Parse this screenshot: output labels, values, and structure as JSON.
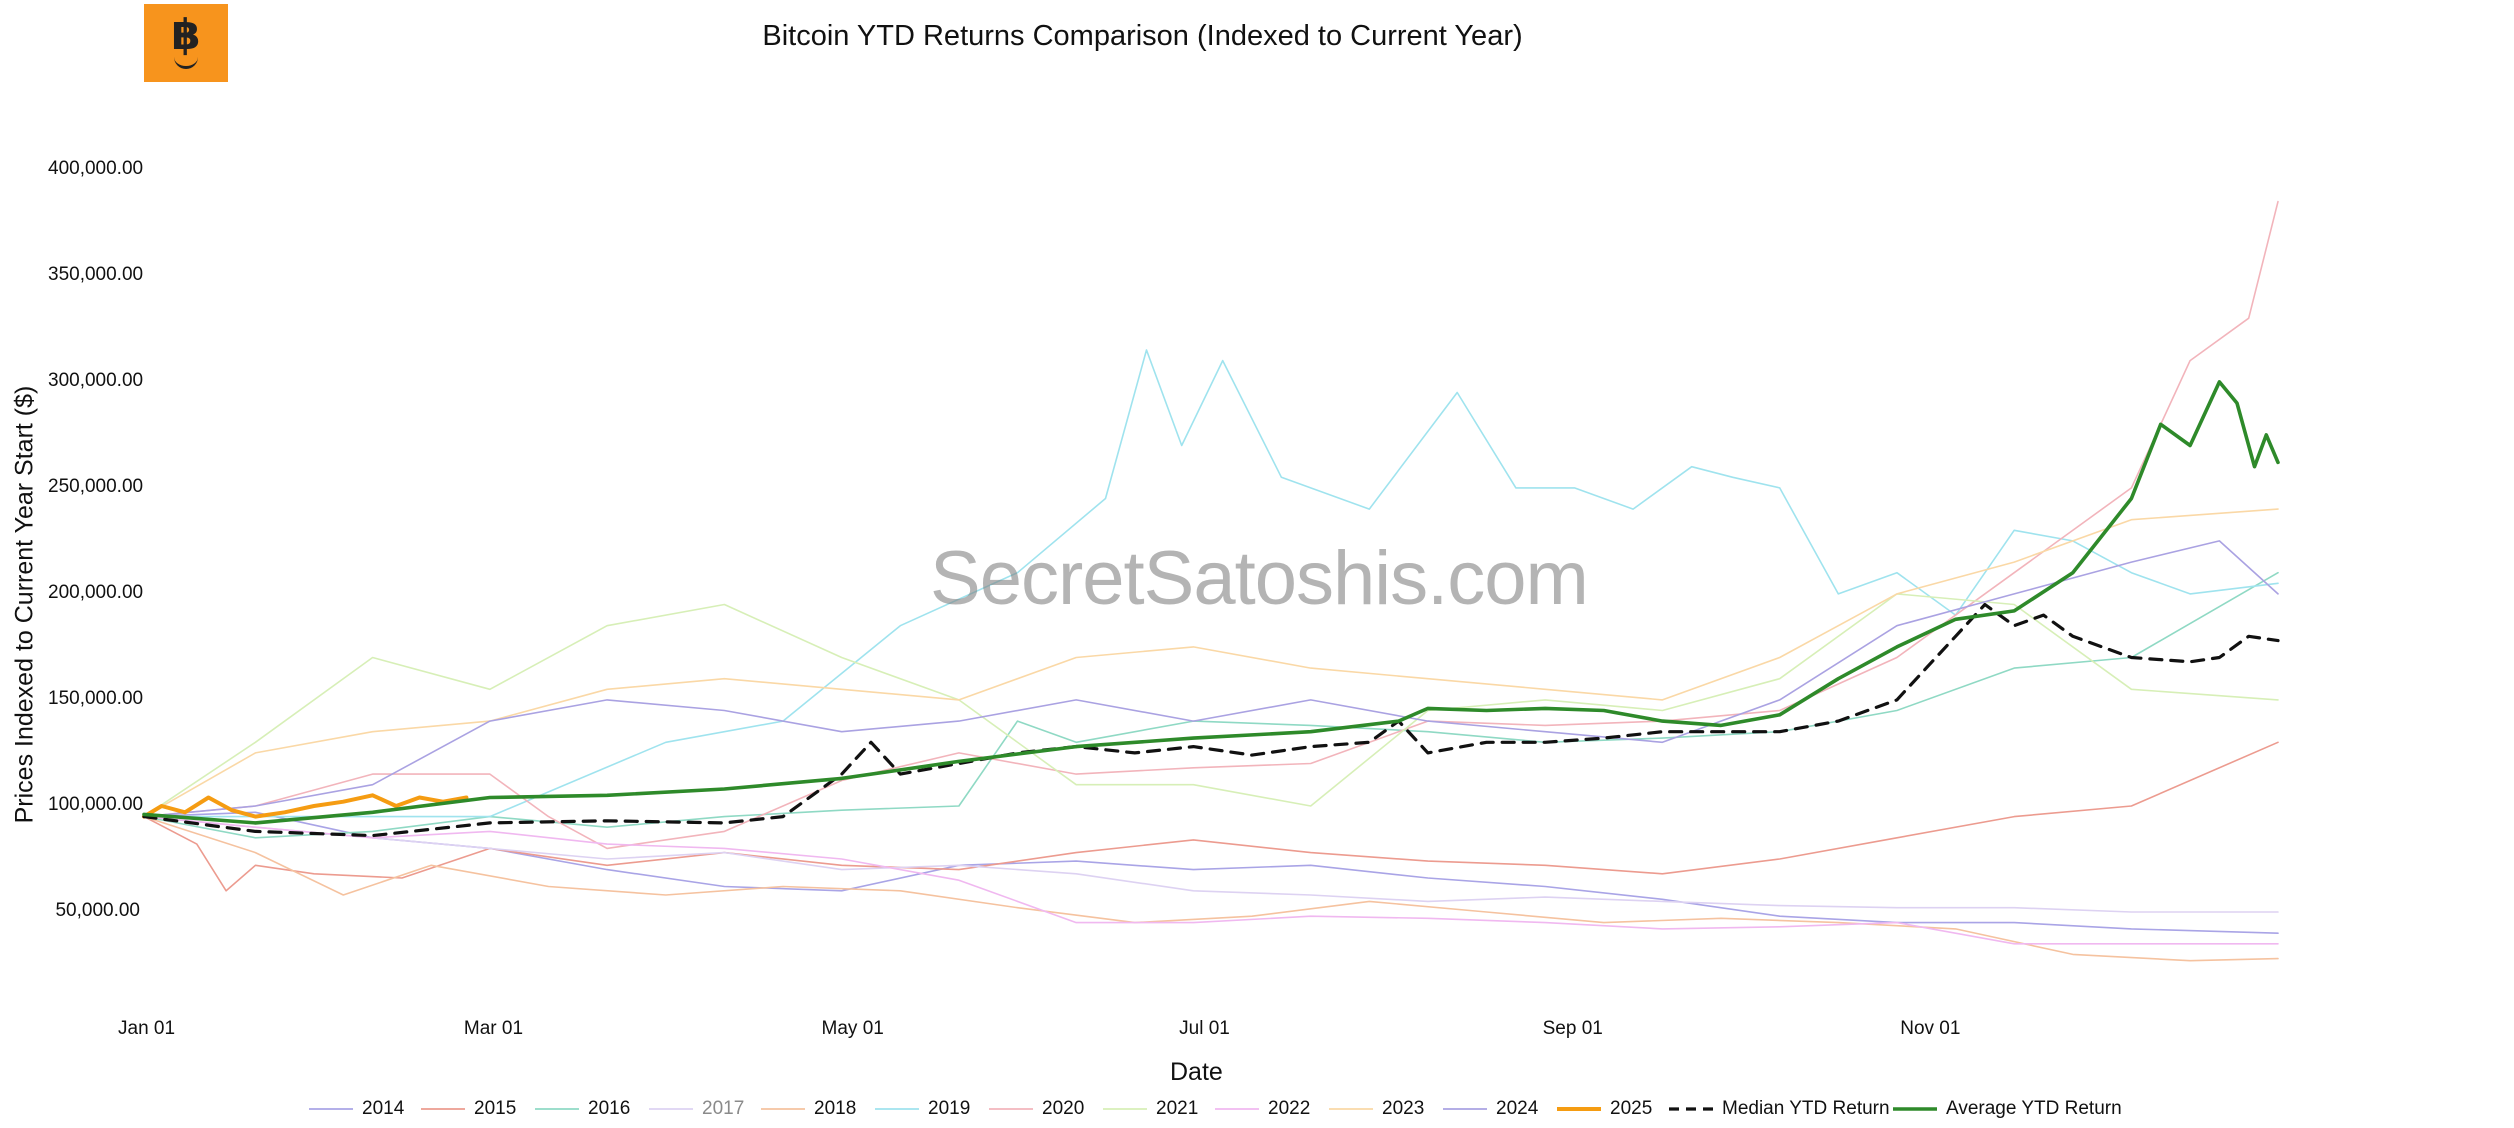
{
  "logo": {
    "glyph": "฿"
  },
  "watermark": "SecretSatoshis.com",
  "chart_data": {
    "type": "line",
    "title": "Bitcoin YTD Returns Comparison (Indexed to Current Year)",
    "xlabel": "Date",
    "ylabel": "Prices Indexed to Current Year Start ($)",
    "ylim": [
      0,
      420000
    ],
    "xlim": [
      1,
      365
    ],
    "x_unit": "day of year",
    "y_ticks": [
      "50,000.00",
      "100,000.00",
      "150,000.00",
      "200,000.00",
      "250,000.00",
      "300,000.00",
      "350,000.00",
      "400,000.00"
    ],
    "y_tick_values": [
      50000,
      100000,
      150000,
      200000,
      250000,
      300000,
      350000,
      400000
    ],
    "x_ticks": [
      "Jan 01",
      "Mar 01",
      "May 01",
      "Jul 01",
      "Sep 01",
      "Nov 01"
    ],
    "x_tick_days": [
      1,
      60,
      121,
      182,
      244,
      305
    ],
    "grid": false,
    "legend_position": "bottom",
    "series": [
      {
        "name": "2014",
        "color": "#a9a4e6",
        "width": 1.6,
        "dash": false,
        "x": [
          1,
          20,
          40,
          60,
          80,
          100,
          120,
          140,
          160,
          180,
          200,
          220,
          240,
          260,
          280,
          300,
          320,
          340,
          365
        ],
        "y": [
          95000,
          97000,
          85000,
          80000,
          70000,
          62000,
          60000,
          72000,
          74000,
          70000,
          72000,
          66000,
          62000,
          56000,
          48000,
          45000,
          45000,
          42000,
          40000
        ]
      },
      {
        "name": "2015",
        "color": "#ec9b8f",
        "width": 1.6,
        "dash": false,
        "x": [
          1,
          10,
          15,
          20,
          30,
          45,
          60,
          80,
          100,
          120,
          140,
          160,
          180,
          200,
          220,
          240,
          260,
          280,
          300,
          320,
          340,
          365
        ],
        "y": [
          95000,
          82000,
          60000,
          72000,
          68000,
          66000,
          80000,
          72000,
          78000,
          72000,
          70000,
          78000,
          84000,
          78000,
          74000,
          72000,
          68000,
          75000,
          85000,
          95000,
          100000,
          130000
        ]
      },
      {
        "name": "2016",
        "color": "#8fd9c4",
        "width": 1.6,
        "dash": false,
        "x": [
          1,
          20,
          40,
          60,
          80,
          100,
          120,
          140,
          150,
          160,
          180,
          200,
          220,
          240,
          260,
          280,
          300,
          320,
          340,
          365
        ],
        "y": [
          95000,
          85000,
          88000,
          95000,
          90000,
          95000,
          98000,
          100000,
          140000,
          130000,
          140000,
          138000,
          135000,
          130000,
          132000,
          135000,
          145000,
          165000,
          170000,
          210000
        ]
      },
      {
        "name": "2017",
        "color": "#ddd2f2",
        "width": 1.6,
        "dash": false,
        "x": [
          1,
          20,
          40,
          60,
          80,
          100,
          120,
          140,
          160,
          180,
          200,
          220,
          240,
          260,
          280,
          300,
          320,
          340,
          365
        ],
        "y": [
          95000,
          90000,
          85000,
          80000,
          75000,
          78000,
          70000,
          72000,
          68000,
          60000,
          58000,
          55000,
          57000,
          55000,
          53000,
          52000,
          52000,
          50000,
          50000
        ]
      },
      {
        "name": "2018",
        "color": "#f5c29f",
        "width": 1.6,
        "dash": false,
        "x": [
          1,
          20,
          35,
          50,
          70,
          90,
          110,
          130,
          150,
          170,
          190,
          210,
          230,
          250,
          270,
          290,
          310,
          330,
          350,
          365
        ],
        "y": [
          95000,
          78000,
          58000,
          72000,
          62000,
          58000,
          62000,
          60000,
          52000,
          45000,
          48000,
          55000,
          50000,
          45000,
          47000,
          45000,
          42000,
          30000,
          27000,
          28000
        ]
      },
      {
        "name": "2019",
        "color": "#9fe3ee",
        "width": 1.6,
        "dash": false,
        "x": [
          1,
          30,
          60,
          90,
          110,
          130,
          150,
          165,
          172,
          178,
          185,
          195,
          210,
          225,
          235,
          245,
          255,
          265,
          272,
          280,
          290,
          300,
          310,
          320,
          330,
          340,
          350,
          365
        ],
        "y": [
          95000,
          95000,
          95000,
          130000,
          140000,
          185000,
          210000,
          245000,
          315000,
          270000,
          310000,
          255000,
          240000,
          295000,
          250000,
          250000,
          240000,
          260000,
          255000,
          250000,
          200000,
          210000,
          190000,
          230000,
          225000,
          210000,
          200000,
          205000
        ]
      },
      {
        "name": "2020",
        "color": "#f2b4bb",
        "width": 1.6,
        "dash": false,
        "x": [
          1,
          20,
          40,
          60,
          70,
          80,
          100,
          120,
          140,
          160,
          180,
          200,
          220,
          240,
          260,
          280,
          300,
          320,
          340,
          350,
          360,
          365
        ],
        "y": [
          95000,
          100000,
          115000,
          115000,
          95000,
          80000,
          88000,
          112000,
          125000,
          115000,
          118000,
          120000,
          140000,
          138000,
          140000,
          145000,
          170000,
          210000,
          250000,
          310000,
          330000,
          385000
        ]
      },
      {
        "name": "2021",
        "color": "#d7efb7",
        "width": 1.6,
        "dash": false,
        "x": [
          1,
          20,
          40,
          60,
          80,
          100,
          120,
          140,
          160,
          180,
          200,
          220,
          240,
          260,
          280,
          300,
          320,
          340,
          365
        ],
        "y": [
          95000,
          130000,
          170000,
          155000,
          185000,
          195000,
          170000,
          150000,
          110000,
          110000,
          100000,
          145000,
          150000,
          145000,
          160000,
          200000,
          195000,
          155000,
          150000
        ]
      },
      {
        "name": "2022",
        "color": "#f0b8f0",
        "width": 1.6,
        "dash": false,
        "x": [
          1,
          20,
          40,
          60,
          80,
          100,
          120,
          140,
          160,
          180,
          200,
          220,
          240,
          260,
          280,
          300,
          320,
          340,
          365
        ],
        "y": [
          95000,
          90000,
          85000,
          88000,
          82000,
          80000,
          75000,
          65000,
          45000,
          45000,
          48000,
          47000,
          45000,
          42000,
          43000,
          45000,
          35000,
          35000,
          35000
        ]
      },
      {
        "name": "2023",
        "color": "#fad8a6",
        "width": 1.6,
        "dash": false,
        "x": [
          1,
          20,
          40,
          60,
          80,
          100,
          120,
          140,
          160,
          180,
          200,
          220,
          240,
          260,
          280,
          300,
          320,
          340,
          365
        ],
        "y": [
          95000,
          125000,
          135000,
          140000,
          155000,
          160000,
          155000,
          150000,
          170000,
          175000,
          165000,
          160000,
          155000,
          150000,
          170000,
          200000,
          215000,
          235000,
          240000
        ]
      },
      {
        "name": "2024",
        "color": "#aaa2e2",
        "width": 1.6,
        "dash": false,
        "x": [
          1,
          20,
          40,
          60,
          80,
          100,
          120,
          140,
          160,
          180,
          200,
          220,
          240,
          260,
          280,
          300,
          320,
          340,
          355,
          365
        ],
        "y": [
          95000,
          100000,
          110000,
          140000,
          150000,
          145000,
          135000,
          140000,
          150000,
          140000,
          150000,
          140000,
          135000,
          130000,
          150000,
          185000,
          200000,
          215000,
          225000,
          200000
        ]
      },
      {
        "name": "2025",
        "color": "#f59c12",
        "width": 4,
        "dash": false,
        "x": [
          1,
          4,
          8,
          12,
          16,
          20,
          25,
          30,
          35,
          40,
          44,
          48,
          52,
          56
        ],
        "y": [
          95000,
          100000,
          97000,
          104000,
          98000,
          95000,
          97000,
          100000,
          102000,
          105000,
          100000,
          104000,
          102000,
          104000
        ]
      },
      {
        "name": "Median YTD Return",
        "color": "#111111",
        "width": 3.2,
        "dash": true,
        "x": [
          1,
          20,
          40,
          60,
          80,
          100,
          110,
          120,
          125,
          130,
          140,
          150,
          160,
          170,
          180,
          190,
          200,
          210,
          215,
          220,
          230,
          240,
          250,
          260,
          270,
          280,
          290,
          300,
          305,
          310,
          315,
          320,
          325,
          330,
          340,
          350,
          355,
          360,
          365
        ],
        "y": [
          95000,
          88000,
          86000,
          92000,
          93000,
          92000,
          95000,
          115000,
          130000,
          115000,
          120000,
          125000,
          128000,
          125000,
          128000,
          124000,
          128000,
          130000,
          140000,
          125000,
          130000,
          130000,
          132000,
          135000,
          135000,
          135000,
          140000,
          150000,
          165000,
          180000,
          195000,
          185000,
          190000,
          180000,
          170000,
          168000,
          170000,
          180000,
          178000
        ]
      },
      {
        "name": "Average YTD Return",
        "color": "#2e8a2a",
        "width": 3.6,
        "dash": false,
        "x": [
          1,
          20,
          40,
          60,
          80,
          100,
          120,
          140,
          160,
          180,
          200,
          215,
          220,
          230,
          240,
          250,
          260,
          270,
          280,
          290,
          300,
          310,
          320,
          330,
          340,
          345,
          350,
          355,
          358,
          361,
          363,
          365
        ],
        "y": [
          96000,
          92000,
          97000,
          104000,
          105000,
          108000,
          113000,
          121000,
          128000,
          132000,
          135000,
          140000,
          146000,
          145000,
          146000,
          145000,
          140000,
          138000,
          143000,
          160000,
          175000,
          188000,
          192000,
          210000,
          245000,
          280000,
          270000,
          300000,
          290000,
          260000,
          275000,
          262000
        ]
      }
    ]
  }
}
